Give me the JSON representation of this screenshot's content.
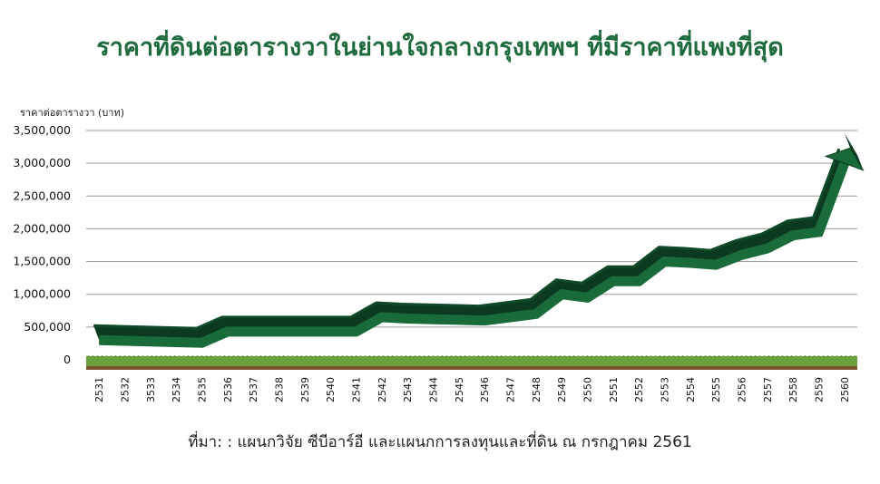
{
  "title": "ราคาที่ดินต่อตารางวาในย่านใจกลางกรุงเทพฯ ที่มีราคาที่แพงที่สุด",
  "source": "ที่มา: : แผนกวิจัย ซีบีอาร์อี และแผนกการลงทุนและที่ดิน ณ กรกฎาคม 2561",
  "colors": {
    "title": "#1d6b3d",
    "ribbon_top": "#1a6b3a",
    "ribbon_side": "#0c3a20",
    "grass": "#6aa33e",
    "soil": "#7a5232",
    "grid": "#9a9a9a"
  },
  "chart_data": {
    "type": "line",
    "title": "ราคาที่ดินต่อตารางวาในย่านใจกลางกรุงเทพฯ ที่มีราคาที่แพงที่สุด",
    "ylabel": "ราคาต่อตารางวา (บาท)",
    "xlabel": "",
    "ylim": [
      0,
      3500000
    ],
    "yticks": [
      0,
      500000,
      1000000,
      1500000,
      2000000,
      2500000,
      3000000,
      3500000
    ],
    "ytick_labels": [
      "0",
      "500,000",
      "1,000,000",
      "1,500,000",
      "2,000,000",
      "2,500,000",
      "3,000,000",
      "3,500,000"
    ],
    "grid": true,
    "categories": [
      "2531",
      "2532",
      "3533",
      "2534",
      "2535",
      "2536",
      "2537",
      "2538",
      "2539",
      "2540",
      "2541",
      "2542",
      "2543",
      "2544",
      "2545",
      "2546",
      "2547",
      "2548",
      "2549",
      "2550",
      "2551",
      "2552",
      "2553",
      "2554",
      "2555",
      "2556",
      "2557",
      "2558",
      "2559",
      "2560"
    ],
    "values": [
      300000,
      290000,
      280000,
      270000,
      260000,
      430000,
      430000,
      430000,
      430000,
      430000,
      430000,
      650000,
      630000,
      620000,
      610000,
      600000,
      650000,
      700000,
      1000000,
      950000,
      1200000,
      1200000,
      1500000,
      1480000,
      1450000,
      1600000,
      1700000,
      1900000,
      1950000,
      3000000
    ]
  }
}
